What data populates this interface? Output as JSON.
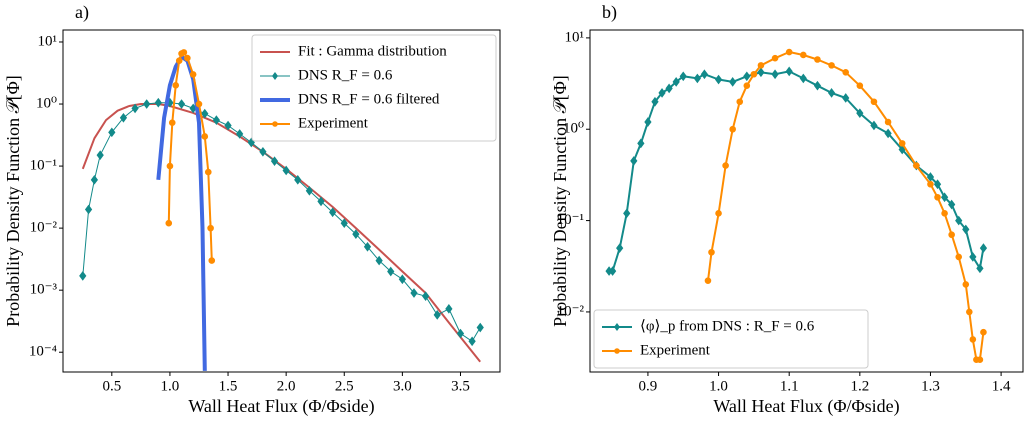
{
  "chart_data": [
    {
      "type": "line",
      "panel_label": "a)",
      "xlabel": "Wall Heat Flux (Φ/Φside)",
      "ylabel": "Probability Density Function 𝒫[Φ]",
      "yscale": "log",
      "legend": "upper right",
      "xlim": [
        0.08,
        3.84
      ],
      "ylim": [
        4.8e-05,
        15.6
      ],
      "xticks": [
        0.5,
        {
          "value": 1,
          "label": "1.0"
        },
        1.5,
        {
          "value": 2,
          "label": "2.0"
        },
        2.5,
        {
          "value": 3,
          "label": "3.0"
        },
        3.5
      ],
      "yticks": [
        {
          "value": 0.0001,
          "label": "10⁻⁴"
        },
        {
          "value": 0.001,
          "label": "10⁻³"
        },
        {
          "value": 0.01,
          "label": "10⁻²"
        },
        {
          "value": 0.1,
          "label": "10⁻¹"
        },
        {
          "value": 1,
          "label": "10⁰"
        },
        {
          "value": 10,
          "label": "10¹"
        }
      ],
      "series": [
        {
          "name": "Fit : Gamma distribution",
          "color": "#c8524f",
          "marker": "none",
          "width": 2,
          "x": [
            0.25,
            0.35,
            0.45,
            0.55,
            0.65,
            0.75,
            0.9,
            1.0,
            1.2,
            1.4,
            1.6,
            1.8,
            2.0,
            2.2,
            2.4,
            2.6,
            2.8,
            3.0,
            3.2,
            3.4,
            3.67
          ],
          "values": [
            0.09,
            0.28,
            0.55,
            0.78,
            0.93,
            1.0,
            1.0,
            0.93,
            0.72,
            0.5,
            0.3,
            0.17,
            0.09,
            0.045,
            0.022,
            0.01,
            0.0045,
            0.002,
            0.0009,
            0.0003,
            7e-05
          ]
        },
        {
          "name": "DNS R_F = 0.6",
          "color": "#138a8a",
          "marker": "diamond",
          "width": 1,
          "x": [
            0.25,
            0.3,
            0.35,
            0.4,
            0.5,
            0.6,
            0.7,
            0.8,
            0.9,
            1.0,
            1.1,
            1.2,
            1.3,
            1.4,
            1.5,
            1.6,
            1.7,
            1.8,
            1.9,
            2.0,
            2.1,
            2.2,
            2.3,
            2.4,
            2.5,
            2.6,
            2.7,
            2.8,
            2.9,
            3.0,
            3.1,
            3.2,
            3.3,
            3.4,
            3.5,
            3.6,
            3.67
          ],
          "values": [
            0.0017,
            0.02,
            0.06,
            0.15,
            0.35,
            0.6,
            0.85,
            1.0,
            1.05,
            1.05,
            1.0,
            0.85,
            0.7,
            0.55,
            0.45,
            0.33,
            0.24,
            0.17,
            0.12,
            0.085,
            0.06,
            0.04,
            0.027,
            0.018,
            0.012,
            0.008,
            0.005,
            0.003,
            0.002,
            0.0015,
            0.0009,
            0.0008,
            0.0004,
            0.0005,
            0.0002,
            0.00015,
            0.00025
          ]
        },
        {
          "name": "DNS R_F = 0.6 filtered",
          "color": "#4169e1",
          "marker": "none",
          "width": 4,
          "x": [
            0.9,
            0.92,
            0.95,
            1.0,
            1.05,
            1.1,
            1.15,
            1.2,
            1.25,
            1.28,
            1.3
          ],
          "values": [
            0.06,
            0.15,
            0.6,
            2,
            4,
            5.8,
            5,
            2.5,
            0.5,
            0.01,
            5e-05
          ]
        },
        {
          "name": "Experiment",
          "color": "#ff8c00",
          "marker": "circle",
          "width": 2,
          "x": [
            0.99,
            1.0,
            1.02,
            1.05,
            1.08,
            1.1,
            1.12,
            1.15,
            1.2,
            1.25,
            1.3,
            1.33,
            1.35,
            1.36
          ],
          "values": [
            0.012,
            0.1,
            0.5,
            2,
            5,
            6.5,
            6.8,
            5.5,
            3,
            1.0,
            0.3,
            0.08,
            0.01,
            0.003
          ]
        }
      ]
    },
    {
      "type": "line",
      "panel_label": "b)",
      "xlabel": "Wall Heat Flux (Φ/Φside)",
      "ylabel": "Probability Density Function 𝒫[Φ]",
      "yscale": "log",
      "legend": "lower left",
      "xlim": [
        0.818,
        1.431
      ],
      "ylim": [
        0.0022,
        12.2
      ],
      "xticks": [
        0.9,
        {
          "value": 1,
          "label": "1.0"
        },
        1.1,
        1.2,
        1.3,
        1.4
      ],
      "yticks": [
        {
          "value": 0.01,
          "label": "10⁻²"
        },
        {
          "value": 0.1,
          "label": "10⁻¹"
        },
        {
          "value": 1,
          "label": "10⁰"
        },
        {
          "value": 10,
          "label": "10¹"
        }
      ],
      "series": [
        {
          "name": "⟨φ⟩_p from DNS : R_F = 0.6",
          "color": "#138a8a",
          "marker": "diamond",
          "width": 2,
          "x": [
            0.845,
            0.85,
            0.86,
            0.87,
            0.88,
            0.89,
            0.9,
            0.91,
            0.92,
            0.93,
            0.94,
            0.95,
            0.97,
            0.98,
            1.0,
            1.02,
            1.04,
            1.06,
            1.08,
            1.1,
            1.12,
            1.14,
            1.16,
            1.18,
            1.2,
            1.22,
            1.24,
            1.26,
            1.28,
            1.3,
            1.31,
            1.32,
            1.33,
            1.34,
            1.35,
            1.36,
            1.37,
            1.375
          ],
          "values": [
            0.028,
            0.028,
            0.05,
            0.12,
            0.45,
            0.7,
            1.2,
            2.0,
            2.5,
            2.8,
            3.3,
            3.8,
            3.6,
            4.0,
            3.5,
            3.3,
            3.8,
            4.2,
            4.0,
            4.3,
            3.6,
            3.0,
            2.5,
            2.2,
            1.5,
            1.1,
            0.9,
            0.6,
            0.4,
            0.3,
            0.25,
            0.18,
            0.15,
            0.1,
            0.08,
            0.04,
            0.03,
            0.05
          ]
        },
        {
          "name": "Experiment",
          "color": "#ff8c00",
          "marker": "circle",
          "width": 2,
          "x": [
            0.985,
            0.99,
            1.0,
            1.01,
            1.02,
            1.03,
            1.04,
            1.05,
            1.06,
            1.08,
            1.1,
            1.12,
            1.14,
            1.16,
            1.18,
            1.2,
            1.22,
            1.24,
            1.26,
            1.28,
            1.3,
            1.31,
            1.32,
            1.33,
            1.34,
            1.35,
            1.355,
            1.36,
            1.365,
            1.37,
            1.375
          ],
          "values": [
            0.022,
            0.045,
            0.12,
            0.4,
            1.0,
            2.0,
            3.0,
            4.0,
            5.0,
            6.0,
            7.0,
            6.5,
            5.8,
            5.0,
            4.2,
            3.0,
            2.0,
            1.2,
            0.7,
            0.4,
            0.25,
            0.18,
            0.12,
            0.07,
            0.04,
            0.02,
            0.01,
            0.005,
            0.003,
            0.003,
            0.006
          ]
        }
      ]
    }
  ]
}
